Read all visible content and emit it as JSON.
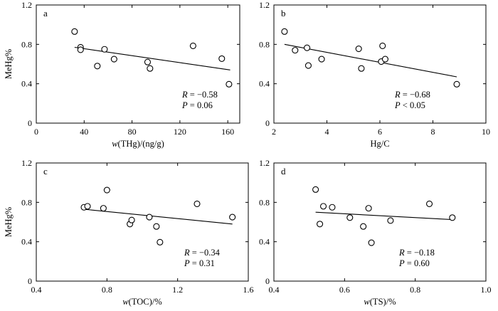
{
  "chart_data": [
    {
      "type": "scatter",
      "panel_label": "a",
      "ylabel": "MeHg%",
      "xlabel_var": "w",
      "xlabel_rest": "(THg)/(ng/g)",
      "xlim": [
        0,
        170
      ],
      "ylim": [
        0,
        1.2
      ],
      "xticks": [
        "0",
        "40",
        "80",
        "120",
        "160"
      ],
      "yticks": [
        "0",
        "0.4",
        "0.8",
        "1.2"
      ],
      "x": [
        32,
        37,
        37,
        51,
        57,
        65,
        93,
        95,
        131,
        155,
        161
      ],
      "y": [
        0.93,
        0.77,
        0.745,
        0.58,
        0.75,
        0.65,
        0.62,
        0.555,
        0.785,
        0.655,
        0.395
      ],
      "trendline": [
        [
          32,
          0.77
        ],
        [
          162,
          0.54
        ]
      ],
      "stat_r_label": "R",
      "stat_r_value": " = −0.58",
      "stat_p_label": "P",
      "stat_p_value": " = 0.06"
    },
    {
      "type": "scatter",
      "panel_label": "b",
      "ylabel": "",
      "xlabel_var": "",
      "xlabel_rest": "Hg/C",
      "xlim": [
        2,
        10
      ],
      "ylim": [
        0,
        1.2
      ],
      "xticks": [
        "2",
        "4",
        "6",
        "8",
        "10"
      ],
      "yticks": [
        "0",
        "0.4",
        "0.8",
        "1.2"
      ],
      "x": [
        2.4,
        2.8,
        3.25,
        3.3,
        3.8,
        5.2,
        5.3,
        6.05,
        6.1,
        6.2,
        8.9
      ],
      "y": [
        0.93,
        0.74,
        0.765,
        0.585,
        0.65,
        0.755,
        0.555,
        0.625,
        0.785,
        0.65,
        0.395
      ],
      "trendline": [
        [
          2.4,
          0.8
        ],
        [
          8.9,
          0.47
        ]
      ],
      "stat_r_label": "R",
      "stat_r_value": " = −0.68",
      "stat_p_label": "P",
      "stat_p_value": " < 0.05"
    },
    {
      "type": "scatter",
      "panel_label": "c",
      "ylabel": "MeHg%",
      "xlabel_var": "w",
      "xlabel_rest": "(TOC)/%",
      "xlim": [
        0.4,
        1.6
      ],
      "ylim": [
        0,
        1.2
      ],
      "xticks": [
        "0.4",
        "0.8",
        "1.2",
        "1.6"
      ],
      "yticks": [
        "0",
        "0.4",
        "0.8",
        "1.2"
      ],
      "x": [
        0.67,
        0.69,
        0.78,
        0.8,
        0.93,
        0.94,
        1.04,
        1.08,
        1.1,
        1.31,
        1.51
      ],
      "y": [
        0.75,
        0.76,
        0.74,
        0.925,
        0.58,
        0.62,
        0.65,
        0.555,
        0.395,
        0.785,
        0.65
      ],
      "trendline": [
        [
          0.67,
          0.73
        ],
        [
          1.51,
          0.58
        ]
      ],
      "stat_r_label": "R",
      "stat_r_value": " = −0.34",
      "stat_p_label": "P",
      "stat_p_value": " = 0.31"
    },
    {
      "type": "scatter",
      "panel_label": "d",
      "ylabel": "",
      "xlabel_var": "w",
      "xlabel_rest": "(TS)/%",
      "xlim": [
        0.4,
        1.0
      ],
      "ylim": [
        0,
        1.2
      ],
      "xticks": [
        "0.4",
        "0.6",
        "0.8",
        "1.0"
      ],
      "yticks": [
        "0",
        "0.4",
        "0.8",
        "1.2"
      ],
      "x": [
        0.518,
        0.53,
        0.54,
        0.565,
        0.615,
        0.653,
        0.668,
        0.676,
        0.73,
        0.84,
        0.905
      ],
      "y": [
        0.93,
        0.58,
        0.76,
        0.75,
        0.645,
        0.555,
        0.74,
        0.39,
        0.615,
        0.785,
        0.645
      ],
      "trendline": [
        [
          0.518,
          0.7
        ],
        [
          0.905,
          0.625
        ]
      ],
      "stat_r_label": "R",
      "stat_r_value": " = −0.18",
      "stat_p_label": "P",
      "stat_p_value": " = 0.60"
    }
  ]
}
